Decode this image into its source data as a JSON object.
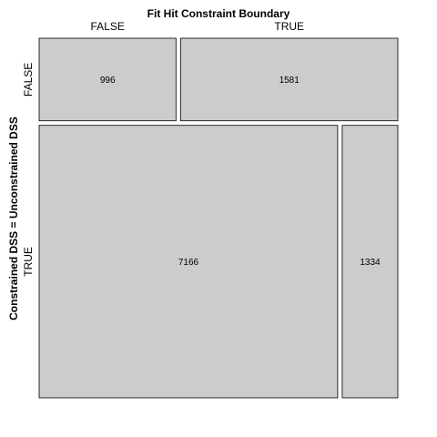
{
  "chart_data": {
    "type": "mosaic",
    "title": "Fit Hit Constraint Boundary",
    "xlabel": "Fit Hit Constraint Boundary",
    "ylabel": "Constrained DSS = Unconstrained DSS",
    "x_levels": [
      "FALSE",
      "TRUE"
    ],
    "y_levels": [
      "FALSE",
      "TRUE"
    ],
    "cells": [
      {
        "row": "FALSE",
        "col": "FALSE",
        "count": 996
      },
      {
        "row": "FALSE",
        "col": "TRUE",
        "count": 1581
      },
      {
        "row": "TRUE",
        "col": "FALSE",
        "count": 7166
      },
      {
        "row": "TRUE",
        "col": "TRUE",
        "count": 1334
      }
    ],
    "fill_color": "#cccccc",
    "border_color": "#000000"
  }
}
